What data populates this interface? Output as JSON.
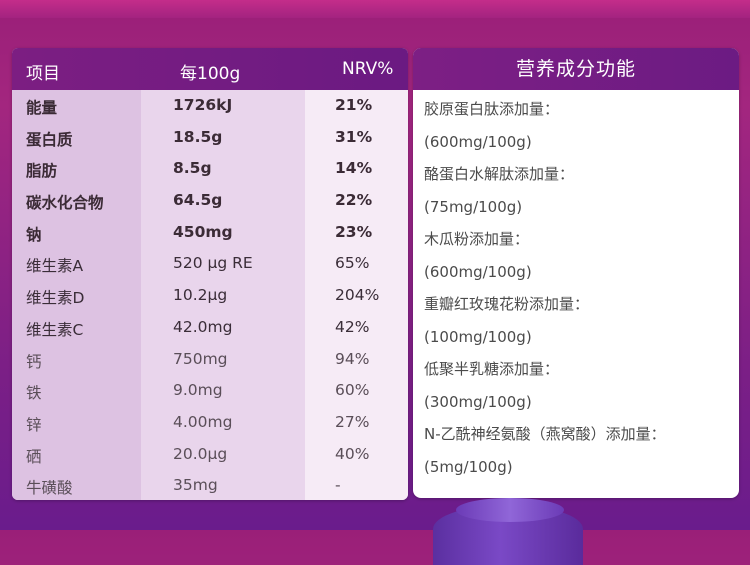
{
  "table": {
    "headers": {
      "item": "项目",
      "per100g": "每100g",
      "nrv": "NRV%"
    },
    "rows": [
      {
        "name": "能量",
        "value": "1726kJ",
        "nrv": "21%"
      },
      {
        "name": "蛋白质",
        "value": "18.5g",
        "nrv": "31%"
      },
      {
        "name": "脂肪",
        "value": "8.5g",
        "nrv": "14%"
      },
      {
        "name": "碳水化合物",
        "value": "64.5g",
        "nrv": "22%"
      },
      {
        "name": "钠",
        "value": "450mg",
        "nrv": "23%"
      },
      {
        "name": "维生素A",
        "value": "520 μg RE",
        "nrv": "65%"
      },
      {
        "name": "维生素D",
        "value": "10.2μg",
        "nrv": "204%"
      },
      {
        "name": "维生素C",
        "value": "42.0mg",
        "nrv": "42%"
      },
      {
        "name": "钙",
        "value": "750mg",
        "nrv": "94%"
      },
      {
        "name": "铁",
        "value": "9.0mg",
        "nrv": "60%"
      },
      {
        "name": "锌",
        "value": "4.00mg",
        "nrv": "27%"
      },
      {
        "name": "硒",
        "value": "20.0μg",
        "nrv": "40%"
      },
      {
        "name": "牛磺酸",
        "value": "35mg",
        "nrv": "-"
      }
    ]
  },
  "functions": {
    "title": "营养成分功能",
    "lines": [
      "胶原蛋白肽添加量：",
      "(600mg/100g)",
      "酪蛋白水解肽添加量：",
      "(75mg/100g)",
      "木瓜粉添加量：",
      "(600mg/100g)",
      "重瓣红玫瑰花粉添加量：",
      "(100mg/100g)",
      "低聚半乳糖添加量：",
      "(300mg/100g)",
      "N-乙酰神经氨酸（燕窝酸）添加量：",
      "(5mg/100g)"
    ]
  }
}
